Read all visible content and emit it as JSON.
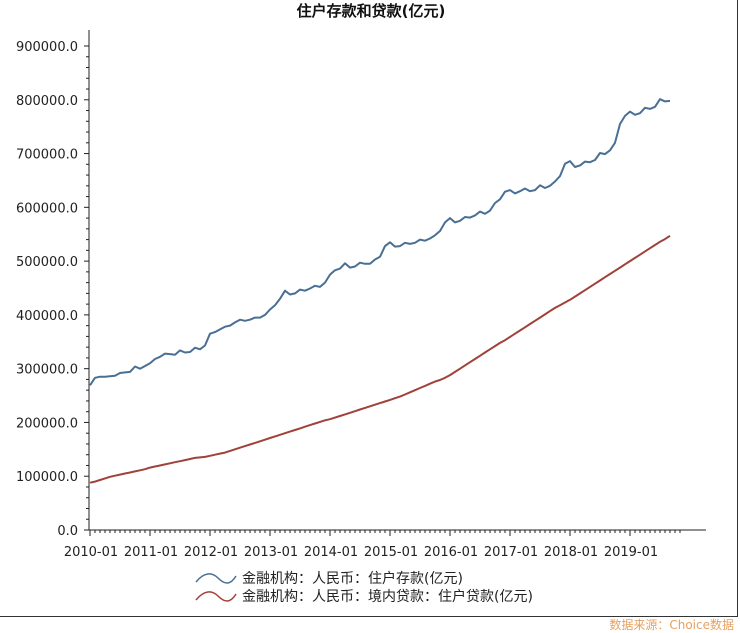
{
  "source": "数据来源：Choice数据",
  "chart_data": {
    "type": "line",
    "title": "住户存款和贷款(亿元)",
    "xlabel": "",
    "ylabel": "",
    "ylim": [
      0,
      900000
    ],
    "yticks": [
      0,
      100000,
      200000,
      300000,
      400000,
      500000,
      600000,
      700000,
      800000,
      900000
    ],
    "ytick_labels": [
      "0.0",
      "100000.0",
      "200000.0",
      "300000.0",
      "400000.0",
      "500000.0",
      "600000.0",
      "700000.0",
      "800000.0",
      "900000.0"
    ],
    "xticks": [
      "2010-01",
      "2011-01",
      "2012-01",
      "2013-01",
      "2014-01",
      "2015-01",
      "2016-01",
      "2017-01",
      "2018-01",
      "2019-01"
    ],
    "series": [
      {
        "name": "金融机构：人民币：住户存款(亿元)",
        "color": "#4a6f94",
        "values": [
          269000,
          283000,
          285000,
          285000,
          286000,
          287000,
          292000,
          293000,
          294000,
          304000,
          300000,
          305000,
          310000,
          318000,
          322000,
          328000,
          327000,
          326000,
          334000,
          330000,
          331000,
          339000,
          336000,
          343000,
          365000,
          368000,
          373000,
          378000,
          380000,
          386000,
          391000,
          389000,
          391000,
          395000,
          395000,
          400000,
          410000,
          418000,
          430000,
          445000,
          438000,
          440000,
          447000,
          445000,
          449000,
          454000,
          452000,
          460000,
          475000,
          483000,
          486000,
          496000,
          488000,
          490000,
          497000,
          495000,
          495000,
          503000,
          508000,
          528000,
          535000,
          527000,
          528000,
          534000,
          532000,
          534000,
          540000,
          538000,
          542000,
          548000,
          556000,
          572000,
          580000,
          572000,
          575000,
          582000,
          581000,
          585000,
          592000,
          588000,
          594000,
          608000,
          615000,
          629000,
          632000,
          626000,
          630000,
          635000,
          630000,
          632000,
          641000,
          636000,
          640000,
          648000,
          658000,
          681000,
          686000,
          675000,
          678000,
          685000,
          684000,
          688000,
          701000,
          699000,
          706000,
          720000,
          755000,
          770000,
          778000,
          772000,
          775000,
          785000,
          783000,
          787000,
          801000,
          797000,
          798000
        ]
      },
      {
        "name": "金融机构：人民币：境内贷款：住户贷款(亿元)",
        "color": "#a0413a",
        "values": [
          88000,
          90000,
          93000,
          96000,
          99000,
          101000,
          103000,
          105000,
          107000,
          109000,
          111000,
          113000,
          116000,
          118000,
          120000,
          122000,
          124000,
          126000,
          128000,
          130000,
          132000,
          134000,
          135000,
          136000,
          138000,
          140000,
          142000,
          144000,
          147000,
          150000,
          153000,
          156000,
          159000,
          162000,
          165000,
          168000,
          171000,
          174000,
          177000,
          180000,
          183000,
          186000,
          189000,
          192000,
          195000,
          198000,
          201000,
          204000,
          206000,
          209000,
          212000,
          215000,
          218000,
          221000,
          224000,
          227000,
          230000,
          233000,
          236000,
          239000,
          242000,
          245000,
          248000,
          252000,
          256000,
          260000,
          264000,
          268000,
          272000,
          276000,
          279000,
          283000,
          288000,
          294000,
          300000,
          306000,
          312000,
          318000,
          324000,
          330000,
          336000,
          342000,
          348000,
          353000,
          359000,
          365000,
          371000,
          377000,
          383000,
          389000,
          395000,
          401000,
          407000,
          413000,
          418000,
          423000,
          428000,
          434000,
          440000,
          446000,
          452000,
          458000,
          464000,
          470000,
          476000,
          482000,
          488000,
          494000,
          500000,
          506000,
          512000,
          518000,
          524000,
          530000,
          536000,
          541000,
          547000
        ]
      }
    ]
  }
}
